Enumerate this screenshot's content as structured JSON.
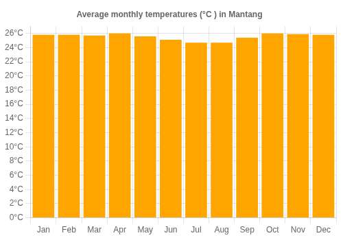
{
  "chart_data": {
    "type": "bar",
    "title": "Average monthly temperatures (°C ) in Mantang",
    "categories": [
      "Jan",
      "Feb",
      "Mar",
      "Apr",
      "May",
      "Jun",
      "Jul",
      "Aug",
      "Sep",
      "Oct",
      "Nov",
      "Dec"
    ],
    "values": [
      25.8,
      25.8,
      25.7,
      26.0,
      25.6,
      25.1,
      24.7,
      24.7,
      25.4,
      26.0,
      25.9,
      25.8
    ],
    "color": "#FFA500",
    "ylim": [
      0,
      27
    ],
    "yticks": [
      {
        "value": 0,
        "label": "0°C"
      },
      {
        "value": 2,
        "label": "2°C"
      },
      {
        "value": 4,
        "label": "4°C"
      },
      {
        "value": 6,
        "label": "6°C"
      },
      {
        "value": 8,
        "label": "8°C"
      },
      {
        "value": 10,
        "label": "10°C"
      },
      {
        "value": 12,
        "label": "12°C"
      },
      {
        "value": 14,
        "label": "14°C"
      },
      {
        "value": 16,
        "label": "16°C"
      },
      {
        "value": 18,
        "label": "18°C"
      },
      {
        "value": 20,
        "label": "20°C"
      },
      {
        "value": 22,
        "label": "22°C"
      },
      {
        "value": 24,
        "label": "24°C"
      },
      {
        "value": 26,
        "label": "26°C"
      }
    ],
    "grid": true
  }
}
